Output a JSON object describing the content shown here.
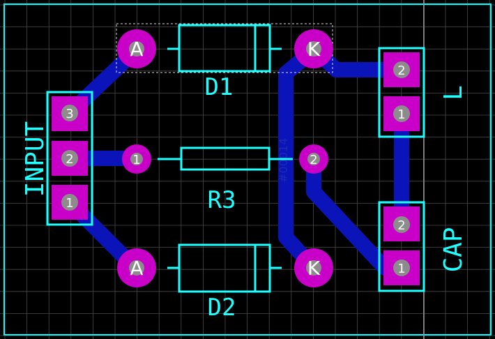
{
  "board": {
    "watermark": "#00014",
    "colors": {
      "background": "#000000",
      "grid": "#4a4a4a",
      "outline": "#00ffff",
      "trace": "#0a14b8",
      "pad": "#c800c8",
      "drill": "#8c8c8c",
      "silkscreen": "#20ffff",
      "selection": "#d8d8d8"
    }
  },
  "components": {
    "input": {
      "ref": "INPUT",
      "pins": [
        "3",
        "2",
        "1"
      ]
    },
    "d1": {
      "ref": "D1",
      "anode": "A",
      "cathode": "K"
    },
    "d2": {
      "ref": "D2",
      "anode": "A",
      "cathode": "K"
    },
    "r3": {
      "ref": "R3",
      "pin1": "1",
      "pin2": "2"
    },
    "l": {
      "ref": "L",
      "pins": [
        "2",
        "1"
      ]
    },
    "cap": {
      "ref": "CAP",
      "pins": [
        "2",
        "1"
      ]
    }
  }
}
